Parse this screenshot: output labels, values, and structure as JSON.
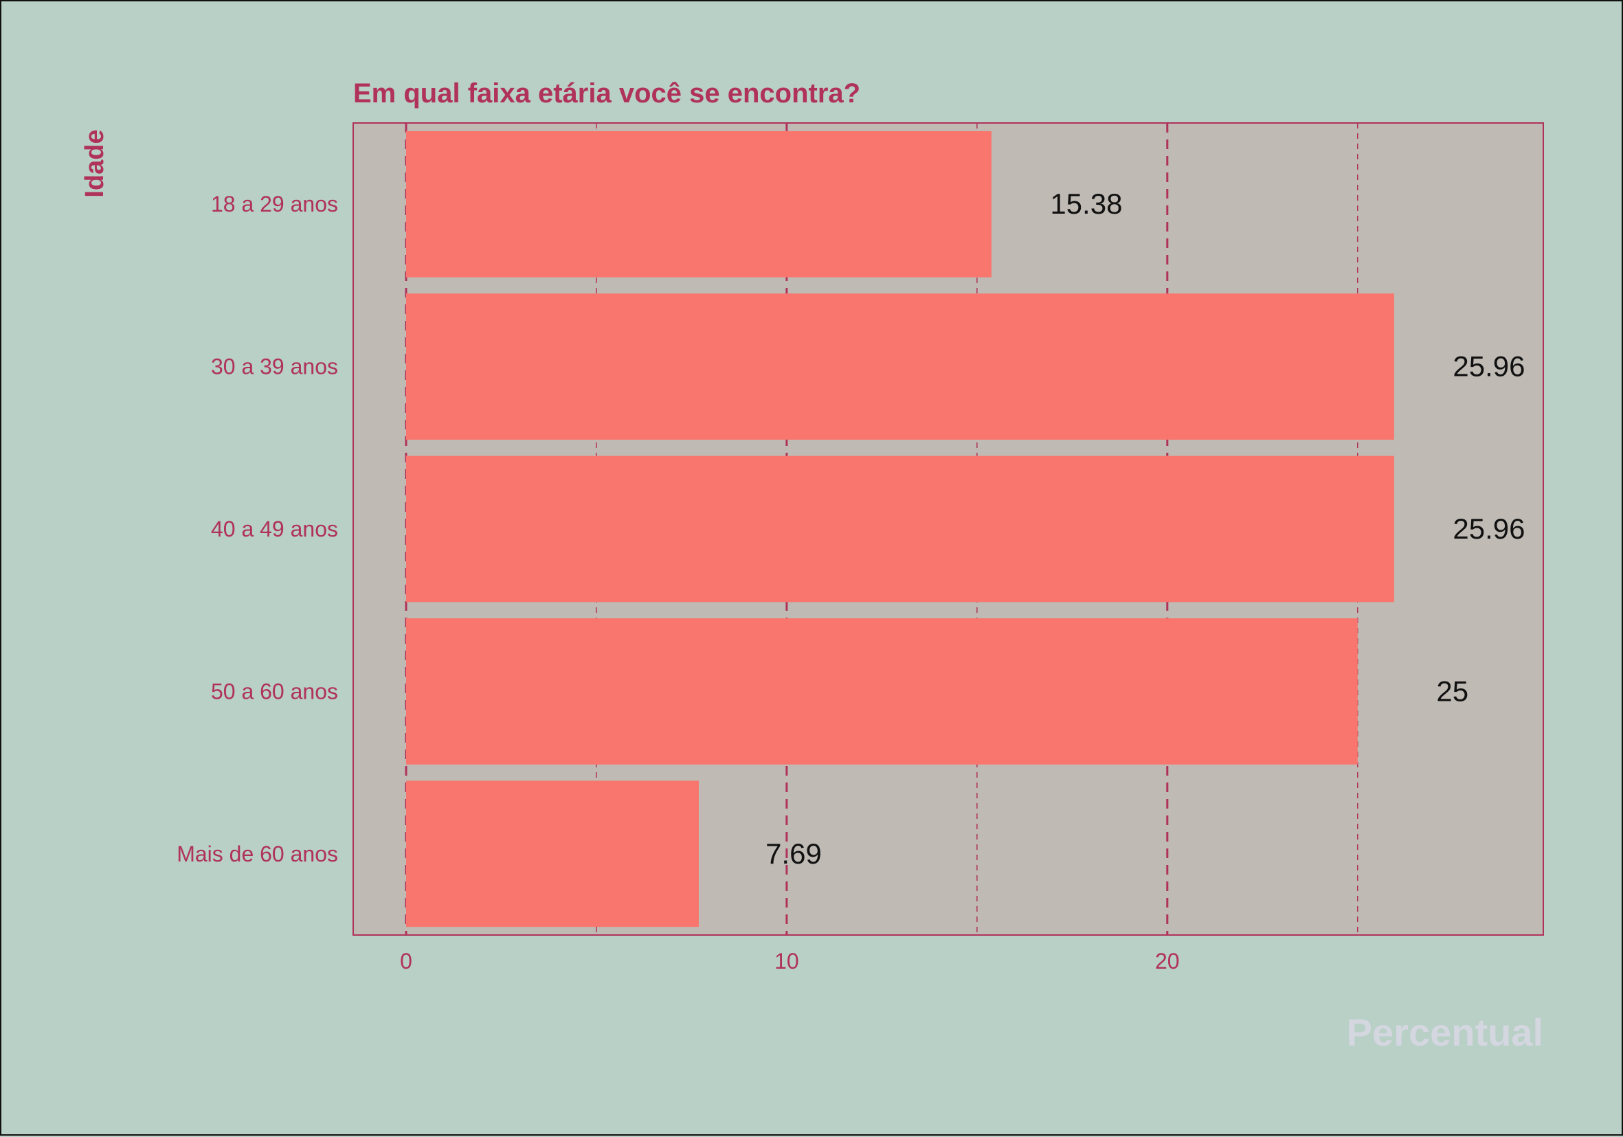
{
  "chart_data": {
    "type": "bar",
    "orientation": "horizontal",
    "title": "Em qual faixa etária você se encontra?",
    "xlabel": "Percentual",
    "ylabel": "Idade",
    "categories": [
      "18 a 29 anos",
      "30 a 39 anos",
      "40 a 49 anos",
      "50 a 60 anos",
      "Mais de 60 anos"
    ],
    "values": [
      15.38,
      25.96,
      25.96,
      25,
      7.69
    ],
    "data_labels": [
      "15.38",
      "25.96",
      "25.96",
      "25",
      "7.69"
    ],
    "xlim": [
      0,
      29.9
    ],
    "x_ticks": [
      0,
      10,
      20
    ],
    "x_ticks_labels": [
      "0",
      "10",
      "20"
    ],
    "x_minor_gridlines": [
      5,
      15,
      25
    ],
    "grid": "vertical dashed",
    "colors": {
      "background": "#b8d0c6",
      "panel": "#bfbab4",
      "bar": "#f8766d",
      "accent": "#b0325a",
      "xlabel": "#d4d6e0",
      "data_label": "#111111"
    }
  }
}
